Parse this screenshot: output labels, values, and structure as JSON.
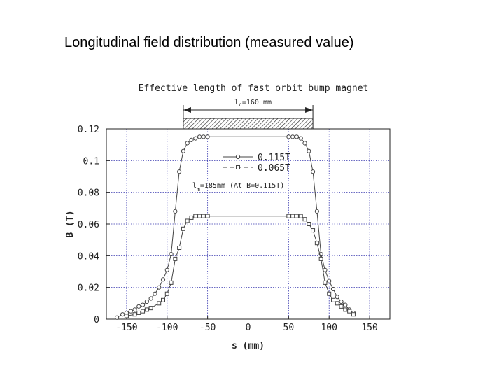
{
  "slide": {
    "title": "Longitudinal field distribution (measured value)"
  },
  "chart_data": {
    "type": "line",
    "title": "Effective length of fast orbit bump magnet",
    "xlabel": "s (mm)",
    "ylabel": "B (T)",
    "xlim": [
      -175,
      175
    ],
    "ylim": [
      0,
      0.12
    ],
    "xticks": [
      -150,
      -100,
      -50,
      0,
      50,
      100,
      150
    ],
    "yticks": [
      0,
      0.02,
      0.04,
      0.06,
      0.08,
      0.1,
      0.12
    ],
    "xtick_labels": [
      "-150",
      "-100",
      "-50",
      "0",
      "50",
      "100",
      "150"
    ],
    "ytick_labels": [
      "0",
      "0.02",
      "0.04",
      "0.06",
      "0.08",
      "0.1",
      "0.12"
    ],
    "grid": true,
    "legend_position": "top-right",
    "core_length": {
      "label_main": "l",
      "label_sub": "c",
      "label_rest": "=160 mm",
      "s_range": [
        -80,
        80
      ]
    },
    "magnetic_length": {
      "label_main": "l",
      "label_sub": "m",
      "label_rest": "=185mm (At B=0.115T)"
    },
    "series": [
      {
        "name": "0.115T",
        "marker": "circle",
        "color": "#444444",
        "x": [
          -162,
          -155,
          -150,
          -145,
          -140,
          -135,
          -130,
          -125,
          -120,
          -115,
          -110,
          -105,
          -100,
          -95,
          -90,
          -85,
          -80,
          -75,
          -70,
          -65,
          -60,
          -55,
          -50,
          50,
          55,
          60,
          65,
          70,
          75,
          80,
          85,
          90,
          95,
          100,
          105,
          110,
          115,
          120,
          125,
          130
        ],
        "y": [
          0.001,
          0.003,
          0.004,
          0.005,
          0.006,
          0.008,
          0.009,
          0.011,
          0.013,
          0.016,
          0.02,
          0.025,
          0.031,
          0.041,
          0.068,
          0.093,
          0.106,
          0.111,
          0.113,
          0.114,
          0.115,
          0.115,
          0.115,
          0.115,
          0.115,
          0.115,
          0.114,
          0.111,
          0.106,
          0.093,
          0.068,
          0.041,
          0.031,
          0.024,
          0.019,
          0.014,
          0.011,
          0.009,
          0.006,
          0.004
        ]
      },
      {
        "name": "0.065T",
        "marker": "square",
        "color": "#444444",
        "x": [
          -150,
          -140,
          -135,
          -130,
          -125,
          -120,
          -110,
          -105,
          -100,
          -95,
          -90,
          -85,
          -80,
          -75,
          -70,
          -65,
          -60,
          -55,
          -50,
          50,
          55,
          60,
          65,
          70,
          75,
          80,
          85,
          90,
          95,
          100,
          105,
          110,
          115,
          120,
          125,
          130
        ],
        "y": [
          0.002,
          0.003,
          0.004,
          0.005,
          0.006,
          0.007,
          0.01,
          0.012,
          0.016,
          0.023,
          0.038,
          0.045,
          0.057,
          0.062,
          0.064,
          0.065,
          0.065,
          0.065,
          0.065,
          0.065,
          0.065,
          0.065,
          0.065,
          0.063,
          0.06,
          0.056,
          0.048,
          0.038,
          0.023,
          0.016,
          0.012,
          0.01,
          0.008,
          0.006,
          0.005,
          0.003
        ]
      }
    ]
  }
}
